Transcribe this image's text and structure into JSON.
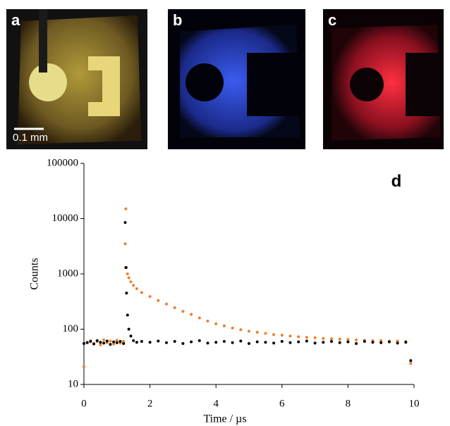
{
  "images": {
    "labels": [
      "a",
      "b",
      "c"
    ],
    "scale_bar": "0.1 mm"
  },
  "chart_data": {
    "type": "scatter",
    "panel_label": "d",
    "x_label": "Time / µs",
    "y_label": "Counts",
    "xlim": [
      0,
      10
    ],
    "xticks": [
      0,
      2,
      4,
      6,
      8,
      10
    ],
    "ylim": [
      10,
      100000
    ],
    "yticks": [
      10,
      100,
      1000,
      10000,
      100000
    ],
    "log_y": true,
    "x": [
      0,
      0.1,
      0.2,
      0.3,
      0.4,
      0.5,
      0.6,
      0.7,
      0.8,
      0.9,
      1.0,
      1.1,
      1.2,
      1.25,
      1.27,
      1.29,
      1.32,
      1.36,
      1.42,
      1.5,
      1.6,
      1.75,
      2.0,
      2.25,
      2.5,
      2.75,
      3.0,
      3.25,
      3.5,
      3.75,
      4.0,
      4.25,
      4.5,
      4.75,
      5.0,
      5.25,
      5.5,
      5.75,
      6.0,
      6.25,
      6.5,
      6.75,
      7.0,
      7.25,
      7.5,
      7.75,
      8.0,
      8.25,
      8.5,
      8.75,
      9.0,
      9.25,
      9.5,
      9.75,
      9.9
    ],
    "series": [
      {
        "color": "#f07f2a",
        "values": [
          21,
          58,
          62,
          55,
          60,
          52,
          64,
          57,
          61,
          54,
          63,
          56,
          60,
          3500,
          15000,
          1300,
          1000,
          850,
          720,
          620,
          540,
          460,
          390,
          330,
          285,
          245,
          210,
          185,
          160,
          140,
          125,
          115,
          105,
          98,
          92,
          88,
          84,
          80,
          78,
          75,
          73,
          71,
          70,
          68,
          67,
          66,
          65,
          64,
          63,
          62,
          62,
          61,
          61,
          60,
          24
        ]
      },
      {
        "color": "#000000",
        "values": [
          55,
          57,
          60,
          54,
          62,
          58,
          56,
          61,
          53,
          59,
          57,
          60,
          55,
          8500,
          1300,
          450,
          180,
          100,
          75,
          62,
          58,
          60,
          58,
          61,
          57,
          60,
          55,
          59,
          62,
          56,
          58,
          60,
          57,
          61,
          55,
          59,
          58,
          56,
          60,
          57,
          59,
          61,
          56,
          58,
          60,
          57,
          59,
          55,
          60,
          58,
          57,
          59,
          56,
          58,
          27
        ]
      }
    ]
  }
}
